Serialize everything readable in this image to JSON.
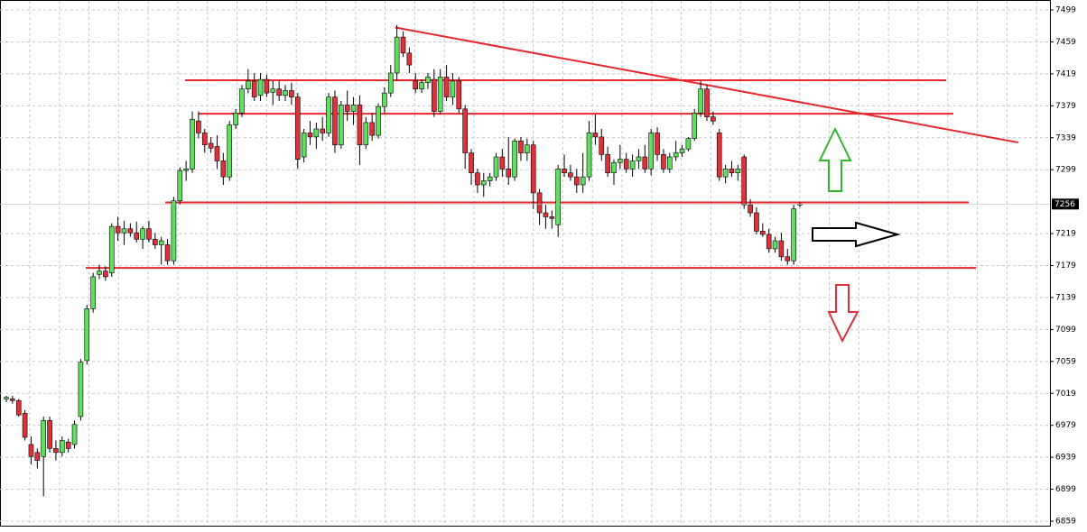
{
  "chart_data": {
    "type": "candlestick",
    "ylim": [
      6859,
      7499
    ],
    "yticks": [
      6859,
      6899,
      6939,
      6979,
      7019,
      7059,
      7099,
      7139,
      7179,
      7219,
      7299,
      7339,
      7379,
      7419,
      7459,
      7499
    ],
    "grid": true,
    "up_color": "#5fe05f",
    "down_color": "#e0313a",
    "level_color": "#e8262e",
    "last_price": 7256,
    "levels": [
      7411,
      7369,
      7258,
      7176
    ],
    "trendline": [
      7477,
      7333
    ],
    "open": [
      7012,
      7012,
      7010,
      6994,
      6955,
      6945,
      6940,
      6985,
      6950,
      6945,
      6958,
      6955,
      6990,
      7060,
      7125,
      7168,
      7172,
      7170,
      7228,
      7220,
      7225,
      7220,
      7212,
      7225,
      7212,
      7205,
      7205,
      7185,
      7260,
      7298,
      7300,
      7360,
      7345,
      7332,
      7328,
      7310,
      7290,
      7355,
      7370,
      7400,
      7410,
      7392,
      7412,
      7396,
      7400,
      7392,
      7398,
      7390,
      7315,
      7345,
      7340,
      7350,
      7345,
      7390,
      7330,
      7380,
      7372,
      7380,
      7330,
      7358,
      7342,
      7378,
      7395,
      7420,
      7465,
      7445,
      7410,
      7400,
      7408,
      7412,
      7372,
      7415,
      7390,
      7410,
      7375,
      7320,
      7295,
      7280,
      7285,
      7290,
      7315,
      7300,
      7290,
      7335,
      7320,
      7330,
      7270,
      7245,
      7240,
      7230,
      7300,
      7295,
      7290,
      7280,
      7290,
      7345,
      7340,
      7318,
      7295,
      7308,
      7312,
      7300,
      7310,
      7315,
      7300,
      7345,
      7318,
      7300,
      7315,
      7320,
      7325,
      7338,
      7370,
      7400,
      7365,
      7345,
      7290,
      7300,
      7295,
      7315,
      7255,
      7245,
      7222,
      7218,
      7200,
      7210,
      7190,
      7185,
      7256
    ],
    "high": [
      7016,
      7016,
      7012,
      6998,
      6965,
      6950,
      6990,
      6990,
      6960,
      6965,
      6962,
      6985,
      7062,
      7130,
      7170,
      7180,
      7178,
      7232,
      7240,
      7235,
      7232,
      7234,
      7228,
      7235,
      7220,
      7215,
      7212,
      7265,
      7302,
      7310,
      7372,
      7372,
      7350,
      7340,
      7342,
      7320,
      7360,
      7375,
      7405,
      7425,
      7420,
      7420,
      7418,
      7410,
      7410,
      7405,
      7408,
      7395,
      7350,
      7360,
      7358,
      7365,
      7395,
      7398,
      7385,
      7398,
      7390,
      7392,
      7365,
      7370,
      7382,
      7402,
      7430,
      7480,
      7472,
      7452,
      7420,
      7412,
      7420,
      7425,
      7425,
      7430,
      7420,
      7415,
      7380,
      7325,
      7300,
      7295,
      7295,
      7320,
      7325,
      7340,
      7338,
      7340,
      7338,
      7335,
      7275,
      7255,
      7248,
      7305,
      7318,
      7305,
      7300,
      7320,
      7360,
      7368,
      7350,
      7328,
      7312,
      7330,
      7320,
      7318,
      7325,
      7330,
      7350,
      7352,
      7325,
      7320,
      7335,
      7330,
      7340,
      7375,
      7410,
      7405,
      7372,
      7350,
      7305,
      7310,
      7305,
      7318,
      7262,
      7252,
      7232,
      7225,
      7215,
      7220,
      7200,
      7255,
      7258
    ],
    "low": [
      7008,
      7006,
      6990,
      6960,
      6930,
      6925,
      6890,
      6945,
      6935,
      6940,
      6945,
      6950,
      6985,
      7055,
      7120,
      7162,
      7160,
      7165,
      7210,
      7205,
      7215,
      7208,
      7200,
      7208,
      7200,
      7180,
      7180,
      7180,
      7255,
      7285,
      7295,
      7338,
      7320,
      7320,
      7300,
      7280,
      7285,
      7350,
      7365,
      7395,
      7385,
      7385,
      7390,
      7380,
      7385,
      7385,
      7380,
      7300,
      7308,
      7330,
      7325,
      7335,
      7340,
      7320,
      7325,
      7360,
      7355,
      7305,
      7325,
      7335,
      7338,
      7370,
      7390,
      7410,
      7440,
      7420,
      7395,
      7395,
      7400,
      7365,
      7368,
      7385,
      7380,
      7370,
      7300,
      7280,
      7270,
      7265,
      7278,
      7285,
      7290,
      7280,
      7285,
      7310,
      7310,
      7250,
      7230,
      7225,
      7225,
      7215,
      7290,
      7285,
      7270,
      7270,
      7285,
      7330,
      7310,
      7290,
      7280,
      7300,
      7295,
      7290,
      7300,
      7295,
      7292,
      7310,
      7295,
      7295,
      7310,
      7315,
      7322,
      7335,
      7365,
      7360,
      7355,
      7285,
      7282,
      7290,
      7285,
      7250,
      7240,
      7218,
      7215,
      7195,
      7195,
      7185,
      7180,
      7180,
      7252
    ],
    "close": [
      7014,
      7010,
      6992,
      6964,
      6940,
      6935,
      6985,
      6950,
      6945,
      6960,
      6950,
      6980,
      7058,
      7125,
      7165,
      7172,
      7165,
      7228,
      7220,
      7225,
      7220,
      7212,
      7225,
      7212,
      7205,
      7210,
      7185,
      7260,
      7298,
      7300,
      7362,
      7345,
      7330,
      7326,
      7310,
      7290,
      7355,
      7370,
      7400,
      7410,
      7390,
      7412,
      7395,
      7400,
      7392,
      7398,
      7390,
      7312,
      7345,
      7340,
      7350,
      7345,
      7390,
      7330,
      7380,
      7372,
      7380,
      7330,
      7358,
      7342,
      7378,
      7395,
      7420,
      7465,
      7445,
      7430,
      7400,
      7408,
      7415,
      7372,
      7415,
      7390,
      7410,
      7375,
      7320,
      7295,
      7280,
      7285,
      7290,
      7315,
      7300,
      7290,
      7335,
      7320,
      7330,
      7270,
      7245,
      7240,
      7238,
      7300,
      7295,
      7290,
      7280,
      7290,
      7345,
      7340,
      7318,
      7295,
      7308,
      7312,
      7300,
      7310,
      7315,
      7300,
      7345,
      7318,
      7300,
      7315,
      7320,
      7325,
      7338,
      7370,
      7400,
      7365,
      7360,
      7290,
      7300,
      7295,
      7300,
      7255,
      7245,
      7222,
      7218,
      7200,
      7210,
      7190,
      7185,
      7250,
      7256
    ]
  }
}
